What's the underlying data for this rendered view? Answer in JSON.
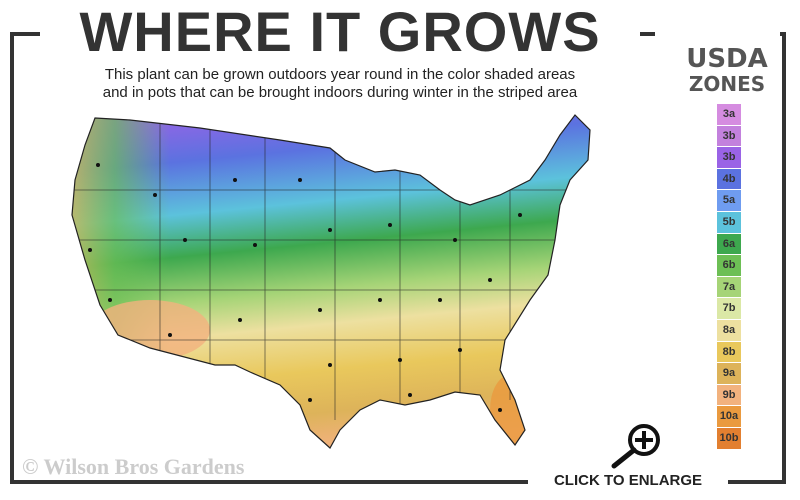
{
  "title": "WHERE IT GROWS",
  "subtitle_line1": "This plant can be grown outdoors year round in the color shaded areas",
  "subtitle_line2": "and in pots that can be brought indoors during winter in the striped area",
  "legend": {
    "title1": "USDA",
    "title2": "ZONES",
    "zones": [
      {
        "label": "3a",
        "color": "#d58ce0"
      },
      {
        "label": "3b",
        "color": "#c381dd"
      },
      {
        "label": "3b",
        "color": "#9a63e6"
      },
      {
        "label": "4b",
        "color": "#5b72e0"
      },
      {
        "label": "5a",
        "color": "#6f9cf0"
      },
      {
        "label": "5b",
        "color": "#5cc2dc"
      },
      {
        "label": "6a",
        "color": "#3da84e"
      },
      {
        "label": "6b",
        "color": "#6dbf55"
      },
      {
        "label": "7a",
        "color": "#a6d477"
      },
      {
        "label": "7b",
        "color": "#dbe8a6"
      },
      {
        "label": "8a",
        "color": "#ede0a0"
      },
      {
        "label": "8b",
        "color": "#e9c85c"
      },
      {
        "label": "9a",
        "color": "#ddb35a"
      },
      {
        "label": "9b",
        "color": "#f2b27e"
      },
      {
        "label": "10a",
        "color": "#ea9a3f"
      },
      {
        "label": "10b",
        "color": "#e27f30"
      }
    ]
  },
  "copyright": "© Wilson Bros Gardens",
  "enlarge_label": "CLICK TO ENLARGE",
  "icons": {
    "enlarge": "magnifier-plus-icon"
  }
}
